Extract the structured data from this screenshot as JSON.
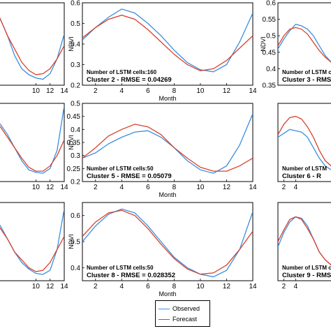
{
  "colors": {
    "observed": "#3a8ee0",
    "forecast": "#d9412a"
  },
  "legend": {
    "observed": "Observed",
    "forecast": "Forecast"
  },
  "chart_data": [
    {
      "id": "c1",
      "type": "line",
      "xlim": [
        1,
        14
      ],
      "ylim": [
        0.35,
        0.6
      ],
      "x": [
        1,
        2,
        3,
        4,
        5,
        6,
        7,
        8,
        9,
        10,
        11,
        12,
        13,
        14
      ],
      "xticks": [
        10,
        12,
        14
      ],
      "yticks": [],
      "xlabel": "",
      "ylabel": "",
      "annotations": [],
      "series": [
        {
          "name": "Observed",
          "values": [
            0.55,
            0.6,
            0.61,
            0.6,
            0.55,
            0.5,
            0.44,
            0.4,
            0.382,
            0.372,
            0.368,
            0.385,
            0.43,
            0.505
          ]
        },
        {
          "name": "Forecast",
          "values": [
            0.56,
            0.59,
            0.6,
            0.59,
            0.55,
            0.5,
            0.46,
            0.42,
            0.395,
            0.382,
            0.385,
            0.4,
            0.43,
            0.47
          ]
        }
      ]
    },
    {
      "id": "c2",
      "type": "line",
      "xlim": [
        1,
        14
      ],
      "ylim": [
        0.2,
        0.6
      ],
      "x": [
        1,
        2,
        3,
        4,
        5,
        6,
        7,
        8,
        9,
        10,
        11,
        12,
        13,
        14
      ],
      "xticks": [
        2,
        4,
        6,
        8,
        10,
        12,
        14
      ],
      "yticks": [
        0.2,
        0.3,
        0.4,
        0.5,
        0.6
      ],
      "xlabel": "Month",
      "ylabel": "NDVI",
      "annotations": [
        "Number of LSTM cells:160",
        "Cluster 2 - RMSE = 0.04269"
      ],
      "series": [
        {
          "name": "Observed",
          "values": [
            0.42,
            0.48,
            0.53,
            0.57,
            0.55,
            0.5,
            0.44,
            0.37,
            0.31,
            0.275,
            0.265,
            0.3,
            0.41,
            0.55
          ]
        },
        {
          "name": "Forecast",
          "values": [
            0.43,
            0.48,
            0.52,
            0.54,
            0.52,
            0.47,
            0.41,
            0.35,
            0.3,
            0.27,
            0.28,
            0.32,
            0.38,
            0.44
          ]
        }
      ]
    },
    {
      "id": "c3",
      "type": "line",
      "xlim": [
        1,
        14
      ],
      "ylim": [
        0.35,
        0.6
      ],
      "x": [
        1,
        2,
        3,
        4,
        5,
        6,
        7,
        8,
        9,
        10,
        11,
        12,
        13,
        14
      ],
      "xticks": [],
      "yticks": [
        0.35,
        0.4,
        0.45,
        0.5,
        0.55,
        0.6
      ],
      "xlabel": "",
      "ylabel": "NDVI",
      "annotations": [
        "Number of LSTM c",
        "Cluster 3 - RMSE"
      ],
      "series": [
        {
          "name": "Observed",
          "values": [
            0.46,
            0.49,
            0.515,
            0.535,
            0.53,
            0.52,
            0.5,
            0.47,
            0.44,
            0.42,
            0.41,
            0.42,
            0.45,
            0.49
          ]
        },
        {
          "name": "Forecast",
          "values": [
            0.47,
            0.5,
            0.52,
            0.525,
            0.52,
            0.505,
            0.48,
            0.455,
            0.435,
            0.42,
            0.42,
            0.43,
            0.45,
            0.48
          ]
        }
      ]
    },
    {
      "id": "c4",
      "type": "line",
      "xlim": [
        1,
        14
      ],
      "ylim": [
        0.2,
        0.5
      ],
      "x": [
        1,
        2,
        3,
        4,
        5,
        6,
        7,
        8,
        9,
        10,
        11,
        12,
        13,
        14
      ],
      "xticks": [
        10,
        12,
        14
      ],
      "yticks": [],
      "xlabel": "",
      "ylabel": "",
      "annotations": [],
      "series": [
        {
          "name": "Observed",
          "values": [
            0.42,
            0.44,
            0.45,
            0.44,
            0.42,
            0.38,
            0.33,
            0.28,
            0.245,
            0.235,
            0.232,
            0.25,
            0.32,
            0.49
          ]
        },
        {
          "name": "Forecast",
          "values": [
            0.42,
            0.43,
            0.44,
            0.43,
            0.41,
            0.37,
            0.33,
            0.29,
            0.255,
            0.24,
            0.24,
            0.26,
            0.3,
            0.36
          ]
        }
      ]
    },
    {
      "id": "c5",
      "type": "line",
      "xlim": [
        1,
        14
      ],
      "ylim": [
        0.2,
        0.5
      ],
      "x": [
        1,
        2,
        3,
        4,
        5,
        6,
        7,
        8,
        9,
        10,
        11,
        12,
        13,
        14
      ],
      "xticks": [
        2,
        4,
        6,
        8,
        10,
        12,
        14
      ],
      "yticks": [
        0.2,
        0.25,
        0.3,
        0.35,
        0.4,
        0.45,
        0.5
      ],
      "xlabel": "Month",
      "ylabel": "NDVI",
      "annotations": [
        "Number of LSTM cells:50",
        "Cluster 5 - RMSE = 0.05079"
      ],
      "series": [
        {
          "name": "Observed",
          "values": [
            0.29,
            0.31,
            0.345,
            0.37,
            0.39,
            0.395,
            0.37,
            0.33,
            0.28,
            0.245,
            0.232,
            0.26,
            0.34,
            0.46
          ]
        },
        {
          "name": "Forecast",
          "values": [
            0.29,
            0.33,
            0.375,
            0.4,
            0.42,
            0.41,
            0.38,
            0.33,
            0.29,
            0.255,
            0.24,
            0.24,
            0.26,
            0.29
          ]
        }
      ]
    },
    {
      "id": "c6",
      "type": "line",
      "xlim": [
        1,
        14
      ],
      "ylim": [
        0.2,
        0.5
      ],
      "x": [
        1,
        2,
        3,
        4,
        5,
        6,
        7,
        8,
        9,
        10,
        11,
        12,
        13,
        14
      ],
      "xticks": [
        2,
        4
      ],
      "yticks": [],
      "xlabel": "",
      "ylabel": "",
      "annotations": [
        "Number of LSTM",
        "Cluster 6 - R"
      ],
      "series": [
        {
          "name": "Observed",
          "values": [
            0.37,
            0.385,
            0.4,
            0.395,
            0.39,
            0.37,
            0.33,
            0.29,
            0.26,
            0.245,
            0.24,
            0.25,
            0.3,
            0.38
          ]
        },
        {
          "name": "Forecast",
          "values": [
            0.38,
            0.42,
            0.445,
            0.45,
            0.44,
            0.41,
            0.37,
            0.32,
            0.28,
            0.26,
            0.255,
            0.27,
            0.3,
            0.35
          ]
        }
      ]
    },
    {
      "id": "c7",
      "type": "line",
      "xlim": [
        1,
        14
      ],
      "ylim": [
        0.35,
        0.65
      ],
      "x": [
        1,
        2,
        3,
        4,
        5,
        6,
        7,
        8,
        9,
        10,
        11,
        12,
        13,
        14
      ],
      "xticks": [
        10,
        12,
        14
      ],
      "yticks": [],
      "xlabel": "",
      "ylabel": "",
      "annotations": [],
      "series": [
        {
          "name": "Observed",
          "values": [
            0.6,
            0.62,
            0.62,
            0.6,
            0.56,
            0.51,
            0.46,
            0.42,
            0.395,
            0.378,
            0.374,
            0.39,
            0.47,
            0.625
          ]
        },
        {
          "name": "Forecast",
          "values": [
            0.6,
            0.61,
            0.61,
            0.59,
            0.55,
            0.51,
            0.46,
            0.43,
            0.4,
            0.385,
            0.39,
            0.42,
            0.47,
            0.52
          ]
        }
      ]
    },
    {
      "id": "c8",
      "type": "line",
      "xlim": [
        1,
        14
      ],
      "ylim": [
        0.35,
        0.65
      ],
      "x": [
        1,
        2,
        3,
        4,
        5,
        6,
        7,
        8,
        9,
        10,
        11,
        12,
        13,
        14
      ],
      "xticks": [
        2,
        4,
        6,
        8,
        10,
        12,
        14
      ],
      "yticks": [
        0.4,
        0.5,
        0.6
      ],
      "xlabel": "Month",
      "ylabel": "NDVI",
      "annotations": [
        "Number of LSTM cells:50",
        "Cluster 8 - RMSE = 0.028352"
      ],
      "series": [
        {
          "name": "Observed",
          "values": [
            0.5,
            0.56,
            0.605,
            0.625,
            0.61,
            0.56,
            0.5,
            0.44,
            0.4,
            0.375,
            0.365,
            0.39,
            0.47,
            0.615
          ]
        },
        {
          "name": "Forecast",
          "values": [
            0.52,
            0.575,
            0.61,
            0.62,
            0.6,
            0.55,
            0.49,
            0.435,
            0.395,
            0.375,
            0.38,
            0.41,
            0.47,
            0.54
          ]
        }
      ]
    },
    {
      "id": "c9",
      "type": "line",
      "xlim": [
        1,
        14
      ],
      "ylim": [
        0.35,
        0.65
      ],
      "x": [
        1,
        2,
        3,
        4,
        5,
        6,
        7,
        8,
        9,
        10,
        11,
        12,
        13,
        14
      ],
      "xticks": [
        2,
        4
      ],
      "yticks": [],
      "xlabel": "",
      "ylabel": "",
      "annotations": [
        "Number of LSTM c",
        "Cluster 9 - RMSE"
      ],
      "series": [
        {
          "name": "Observed",
          "values": [
            0.48,
            0.535,
            0.575,
            0.595,
            0.59,
            0.56,
            0.51,
            0.46,
            0.43,
            0.41,
            0.4,
            0.42,
            0.48,
            0.58
          ]
        },
        {
          "name": "Forecast",
          "values": [
            0.5,
            0.545,
            0.585,
            0.595,
            0.585,
            0.55,
            0.51,
            0.46,
            0.43,
            0.41,
            0.41,
            0.43,
            0.47,
            0.53
          ]
        }
      ]
    }
  ]
}
